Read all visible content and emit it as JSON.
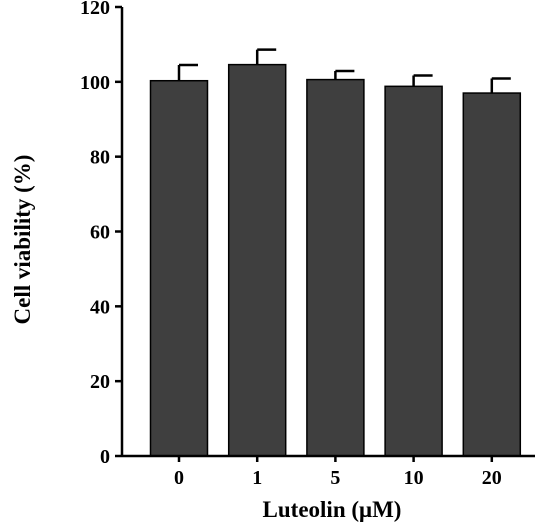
{
  "chart_data": {
    "type": "bar",
    "categories": [
      "0",
      "1",
      "5",
      "10",
      "20"
    ],
    "values": [
      100.3,
      104.6,
      100.6,
      98.8,
      97.0
    ],
    "errors": [
      4.2,
      4.0,
      2.3,
      2.9,
      3.9
    ],
    "xlabel": "Luteolin (μM)",
    "ylabel": "Cell viability (%)",
    "ylim": [
      0,
      120
    ],
    "yticks": [
      0,
      20,
      40,
      60,
      80,
      100,
      120
    ],
    "grid": false,
    "bar_color": "#3f3f3f"
  }
}
